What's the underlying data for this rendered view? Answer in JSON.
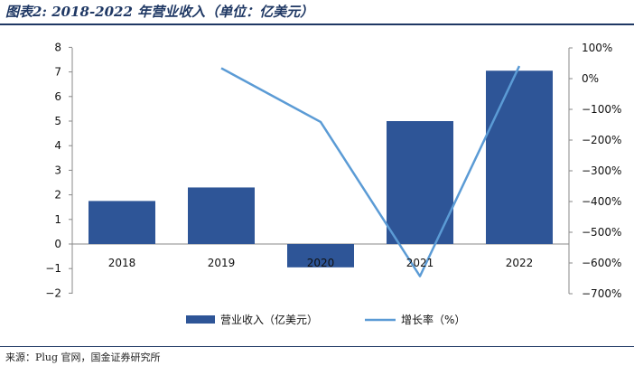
{
  "title": "图表2: 2018-2022 年营业收入（单位：亿美元）",
  "source": "来源：Plug 官网，国金证券研究所",
  "chart_data": {
    "type": "bar",
    "categories": [
      "2018",
      "2019",
      "2020",
      "2021",
      "2022"
    ],
    "series": [
      {
        "name": "营业收入（亿美元）",
        "type": "bar",
        "axis": "left",
        "color": "#2e5597",
        "values": [
          1.75,
          2.3,
          -0.95,
          5.0,
          7.05
        ]
      },
      {
        "name": "增长率（%）",
        "type": "line",
        "axis": "right",
        "color": "#5b9bd5",
        "values": [
          null,
          34,
          -141,
          -643,
          41
        ]
      }
    ],
    "y_left": {
      "min": -2,
      "max": 8,
      "ticks": [
        -2,
        -1,
        0,
        1,
        2,
        3,
        4,
        5,
        6,
        7,
        8
      ],
      "tick_labels": [
        "−2",
        "−1",
        "0",
        "1",
        "2",
        "3",
        "4",
        "5",
        "6",
        "7",
        "8"
      ]
    },
    "y_right": {
      "min": -700,
      "max": 100,
      "ticks": [
        100,
        0,
        -100,
        -200,
        -300,
        -400,
        -500,
        -600,
        -700
      ],
      "tick_labels": [
        "100%",
        "0%",
        "−100%",
        "−200%",
        "−300%",
        "−400%",
        "−500%",
        "−600%",
        "−700%"
      ]
    },
    "grid": false,
    "legend_position": "bottom"
  }
}
